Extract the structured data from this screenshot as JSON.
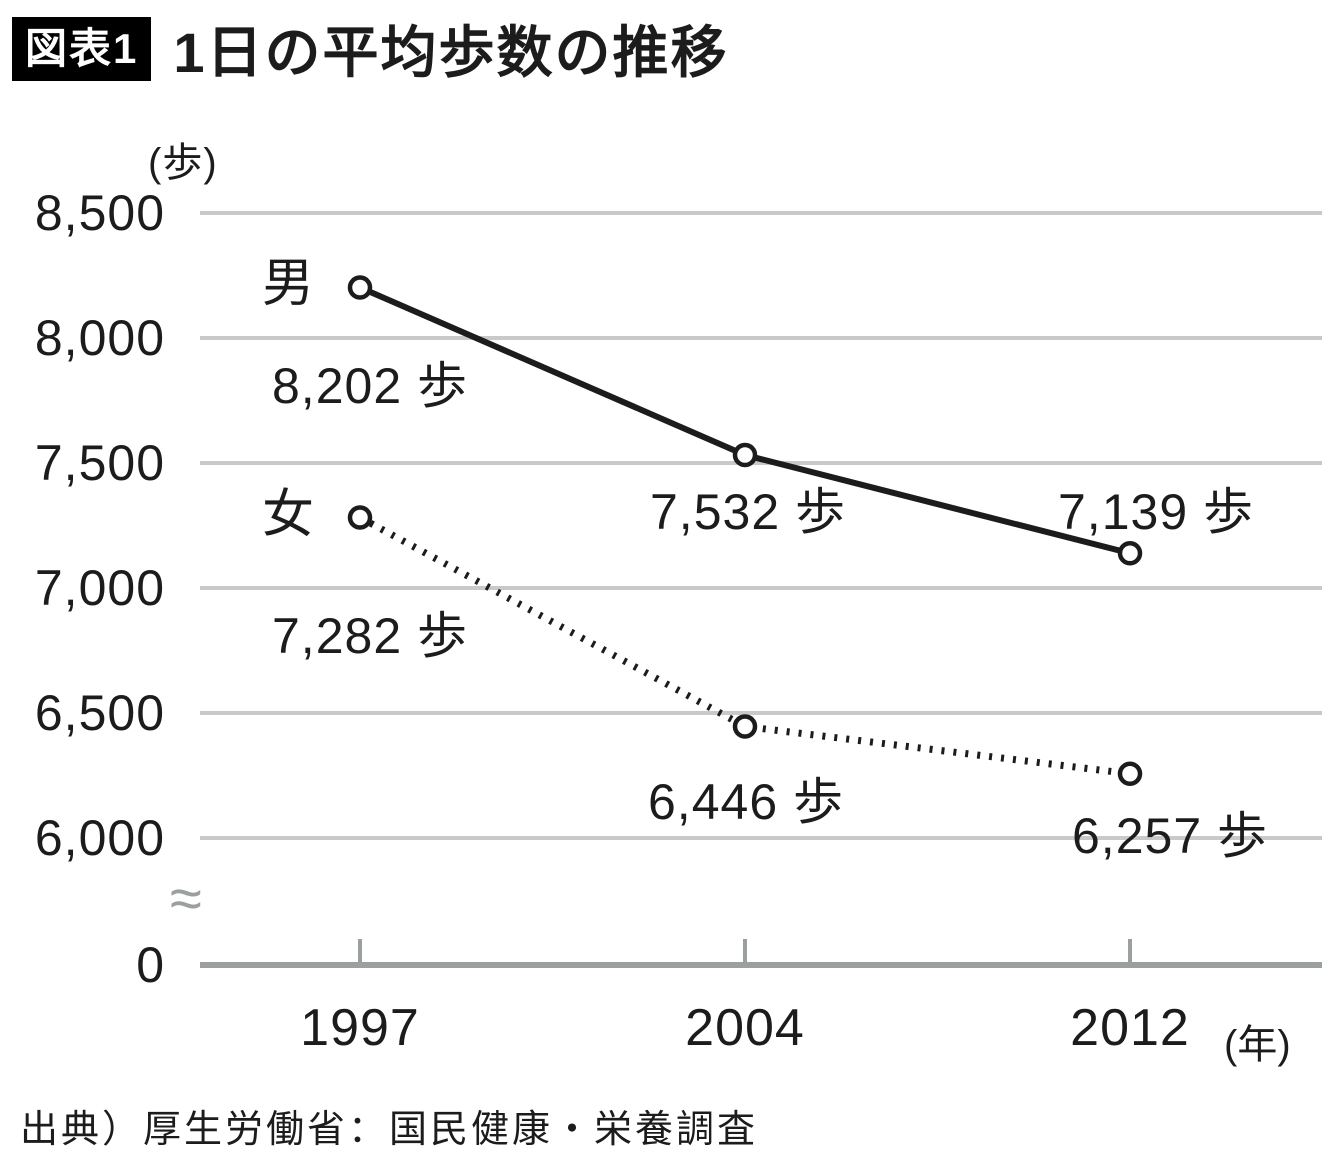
{
  "header": {
    "badge": "図表1",
    "title": "1日の平均歩数の推移"
  },
  "chart_data": {
    "type": "line",
    "title": "1日の平均歩数の推移",
    "x": [
      1997,
      2004,
      2012
    ],
    "x_tick_labels": [
      "1997",
      "2004",
      "2012"
    ],
    "x_axis_unit": "(年)",
    "y_axis_unit": "(歩)",
    "y_ticks": [
      8500,
      8000,
      7500,
      7000,
      6500,
      6000
    ],
    "y_tick_labels": [
      "8,500",
      "8,000",
      "7,500",
      "7,000",
      "6,500",
      "6,000"
    ],
    "y_zero_label": "0",
    "axis_break_symbol": "≈",
    "ylim": [
      6000,
      8500
    ],
    "grid": true,
    "legend_position": "inline-labels",
    "series": [
      {
        "name": "男",
        "line_style": "solid",
        "values": [
          8202,
          7532,
          7139
        ],
        "point_labels": [
          "8,202 歩",
          "7,532 歩",
          "7,139 歩"
        ]
      },
      {
        "name": "女",
        "line_style": "dotted",
        "values": [
          7282,
          6446,
          6257
        ],
        "point_labels": [
          "7,282 歩",
          "6,446 歩",
          "6,257 歩"
        ]
      }
    ]
  },
  "footer": {
    "source": "出典）厚生労働省：国民健康・栄養調査"
  },
  "colors": {
    "line": "#1c1c1c",
    "grid": "#c7cac9",
    "axis": "#9b9f9e",
    "text": "#1c1c1c",
    "badge_bg": "#000000",
    "badge_text": "#ffffff",
    "marker_fill": "#ffffff"
  }
}
